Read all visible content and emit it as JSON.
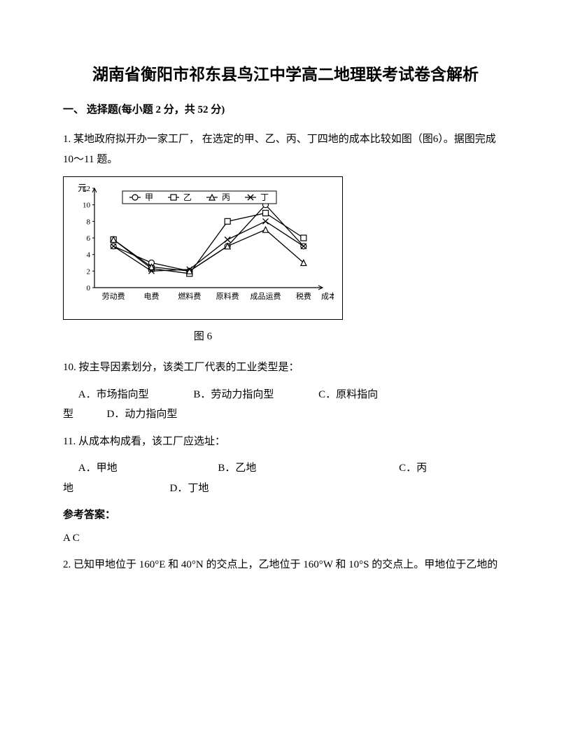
{
  "title": "湖南省衡阳市祁东县鸟江中学高二地理联考试卷含解析",
  "section1": "一、 选择题(每小题 2 分，共 52 分)",
  "q1_intro": "1. 某地政府拟开办一家工厂， 在选定的甲、乙、丙、丁四地的成本比较如图（图6）。据图完成 10～11 题。",
  "chart": {
    "y_label": "元",
    "y_ticks": [
      0,
      2,
      4,
      6,
      8,
      10,
      12
    ],
    "categories": [
      "劳动费",
      "电费",
      "燃料费",
      "原料费",
      "成品运费",
      "税费"
    ],
    "x_tail": "成本构成",
    "legend": [
      {
        "label": "甲",
        "marker": "circle"
      },
      {
        "label": "乙",
        "marker": "square"
      },
      {
        "label": "丙",
        "marker": "triangle"
      },
      {
        "label": "丁",
        "marker": "x"
      }
    ],
    "series": {
      "jia": [
        5.0,
        3.0,
        2.0,
        5.0,
        10.0,
        5.0
      ],
      "yi": [
        5.8,
        2.3,
        1.7,
        8.0,
        9.0,
        6.0
      ],
      "bing": [
        5.8,
        2.5,
        2.0,
        5.0,
        7.0,
        3.0
      ],
      "ding": [
        5.0,
        2.0,
        2.2,
        5.8,
        8.0,
        5.0
      ]
    },
    "caption": "图 6",
    "axis_color": "#000000",
    "line_color": "#000000",
    "bg": "#ffffff",
    "legend_border": "#000000"
  },
  "q10": {
    "stem": "10. 按主导因素划分，该类工厂代表的工业类型是：",
    "A": "A．市场指向型",
    "B": "B．劳动力指向型",
    "C_pre": "C．原料指向",
    "C_post": "型",
    "D": "D．动力指向型"
  },
  "q11": {
    "stem": "11. 从成本构成看，该工厂应选址：",
    "A": "A．甲地",
    "B": "B．乙地",
    "C_pre": "C．丙",
    "C_post": "地",
    "D": "D．丁地"
  },
  "answer_label": "参考答案：",
  "answer": "A C",
  "q2": "2. 已知甲地位于 160°E 和 40°N 的交点上，乙地位于 160°W 和 10°S 的交点上。甲地位于乙地的"
}
